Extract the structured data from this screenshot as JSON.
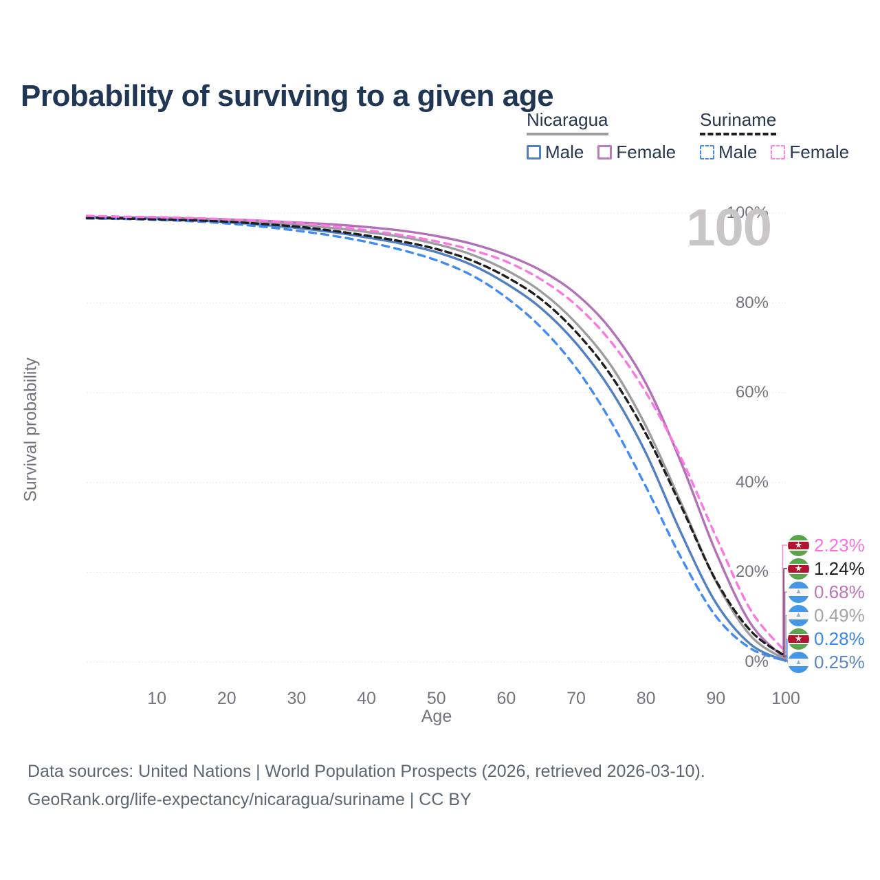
{
  "header": {
    "title": "Probability of surviving to a given age"
  },
  "watermark": "100",
  "legend": {
    "groups": [
      {
        "label": "Nicaragua",
        "line": "solid",
        "swatch_color": "#9c9ca1",
        "items": [
          {
            "label": "Male",
            "color": "#5180c2",
            "line": "solid"
          },
          {
            "label": "Female",
            "color": "#bf7ab8",
            "line": "solid"
          }
        ]
      },
      {
        "label": "Suriname",
        "line": "dashed",
        "swatch_color": "#1e1e1e",
        "items": [
          {
            "label": "Male",
            "color": "#418bf2",
            "line": "dashed"
          },
          {
            "label": "Female",
            "color": "#ff85e6",
            "line": "dashed"
          }
        ]
      }
    ]
  },
  "chart_data": {
    "type": "line",
    "title": "Probability of surviving to a given age",
    "xlabel": "Age",
    "ylabel": "Survival probability",
    "xlim": [
      0,
      100
    ],
    "ylim": [
      0,
      100
    ],
    "grid": "horizontal-dotted",
    "legend_position": "top-right",
    "x": [
      0,
      5,
      10,
      15,
      20,
      25,
      30,
      35,
      40,
      45,
      50,
      55,
      60,
      65,
      70,
      75,
      80,
      85,
      90,
      95,
      100
    ],
    "x_ticks": [
      {
        "value": 10,
        "label": "10"
      },
      {
        "value": 20,
        "label": "20"
      },
      {
        "value": 30,
        "label": "30"
      },
      {
        "value": 40,
        "label": "40"
      },
      {
        "value": 50,
        "label": "50"
      },
      {
        "value": 60,
        "label": "60"
      },
      {
        "value": 70,
        "label": "70"
      },
      {
        "value": 80,
        "label": "80"
      },
      {
        "value": 90,
        "label": "90"
      },
      {
        "value": 100,
        "label": "100"
      }
    ],
    "y_ticks": [
      {
        "value": 0,
        "label": "0%"
      },
      {
        "value": 20,
        "label": "20%"
      },
      {
        "value": 40,
        "label": "40%"
      },
      {
        "value": 60,
        "label": "60%"
      },
      {
        "value": 80,
        "label": "80%"
      },
      {
        "value": 100,
        "label": "100%"
      }
    ],
    "series": [
      {
        "name": "Nicaragua Female",
        "country": "Nicaragua",
        "sex": "Female",
        "line": "solid",
        "color": "#b170b8",
        "values": [
          99.2,
          99.1,
          99.0,
          98.8,
          98.6,
          98.3,
          97.9,
          97.5,
          96.9,
          96.1,
          94.9,
          93.2,
          90.7,
          87.2,
          82.0,
          74.0,
          62.0,
          44.5,
          24.5,
          8.5,
          0.68
        ],
        "end_label": "0.68%"
      },
      {
        "name": "Nicaragua",
        "country": "Nicaragua",
        "sex": "Both",
        "line": "solid",
        "color": "#9c9ca1",
        "values": [
          99.1,
          99.0,
          98.8,
          98.6,
          98.3,
          97.9,
          97.4,
          96.7,
          95.8,
          94.7,
          93.1,
          90.8,
          87.3,
          82.5,
          75.5,
          66.0,
          52.5,
          35.5,
          18.0,
          5.8,
          0.49
        ],
        "end_label": "0.49%"
      },
      {
        "name": "Nicaragua Male",
        "country": "Nicaragua",
        "sex": "Male",
        "line": "solid",
        "color": "#5180c2",
        "values": [
          99.0,
          98.9,
          98.7,
          98.4,
          98.0,
          97.4,
          96.7,
          95.8,
          94.6,
          93.2,
          91.3,
          88.5,
          84.3,
          78.8,
          71.0,
          60.5,
          46.5,
          28.8,
          13.2,
          3.9,
          0.25
        ],
        "end_label": "0.25%"
      },
      {
        "name": "Suriname Male",
        "country": "Suriname",
        "sex": "Male",
        "line": "dashed",
        "color": "#418bf2",
        "values": [
          98.8,
          98.7,
          98.5,
          98.2,
          97.7,
          97.0,
          96.1,
          95.0,
          93.6,
          91.8,
          89.5,
          86.2,
          81.2,
          74.5,
          65.5,
          53.5,
          39.0,
          23.3,
          10.2,
          3.0,
          0.28
        ],
        "end_label": "0.28%"
      },
      {
        "name": "Suriname",
        "country": "Suriname",
        "sex": "Both",
        "line": "dashed",
        "color": "#1e1e1e",
        "values": [
          98.9,
          98.8,
          98.6,
          98.4,
          98.1,
          97.6,
          97.0,
          96.1,
          95.0,
          93.7,
          92.0,
          89.5,
          85.8,
          80.8,
          73.5,
          63.8,
          50.8,
          34.8,
          18.2,
          6.9,
          1.24
        ],
        "end_label": "1.24%"
      },
      {
        "name": "Suriname Female",
        "country": "Suriname",
        "sex": "Female",
        "line": "dashed",
        "color": "#fb78e2",
        "values": [
          99.4,
          99.2,
          99.1,
          98.9,
          98.6,
          98.3,
          97.8,
          97.1,
          96.2,
          95.1,
          93.7,
          91.8,
          89.2,
          85.2,
          79.5,
          71.3,
          60.0,
          45.5,
          28.0,
          11.5,
          2.23
        ],
        "end_label": "2.23%"
      }
    ]
  },
  "end_labels": [
    {
      "flag": "suriname",
      "series": "Suriname Female",
      "value": "2.23%",
      "color": "#f772de"
    },
    {
      "flag": "suriname",
      "series": "Suriname",
      "value": "1.24%",
      "color": "#1e1e1e"
    },
    {
      "flag": "nicaragua",
      "series": "Nicaragua Female",
      "value": "0.68%",
      "color": "#bf73ba"
    },
    {
      "flag": "nicaragua",
      "series": "Nicaragua",
      "value": "0.49%",
      "color": "#a4a4a8"
    },
    {
      "flag": "suriname",
      "series": "Suriname Male",
      "value": "0.28%",
      "color": "#3c85ee"
    },
    {
      "flag": "nicaragua",
      "series": "Nicaragua Male",
      "value": "0.25%",
      "color": "#5b85c4"
    }
  ],
  "footer": {
    "line1": "Data sources: United Nations | World Population Prospects (2026, retrieved 2026-03-10).",
    "line2": "GeoRank.org/life-expectancy/nicaragua/suriname | CC BY"
  }
}
